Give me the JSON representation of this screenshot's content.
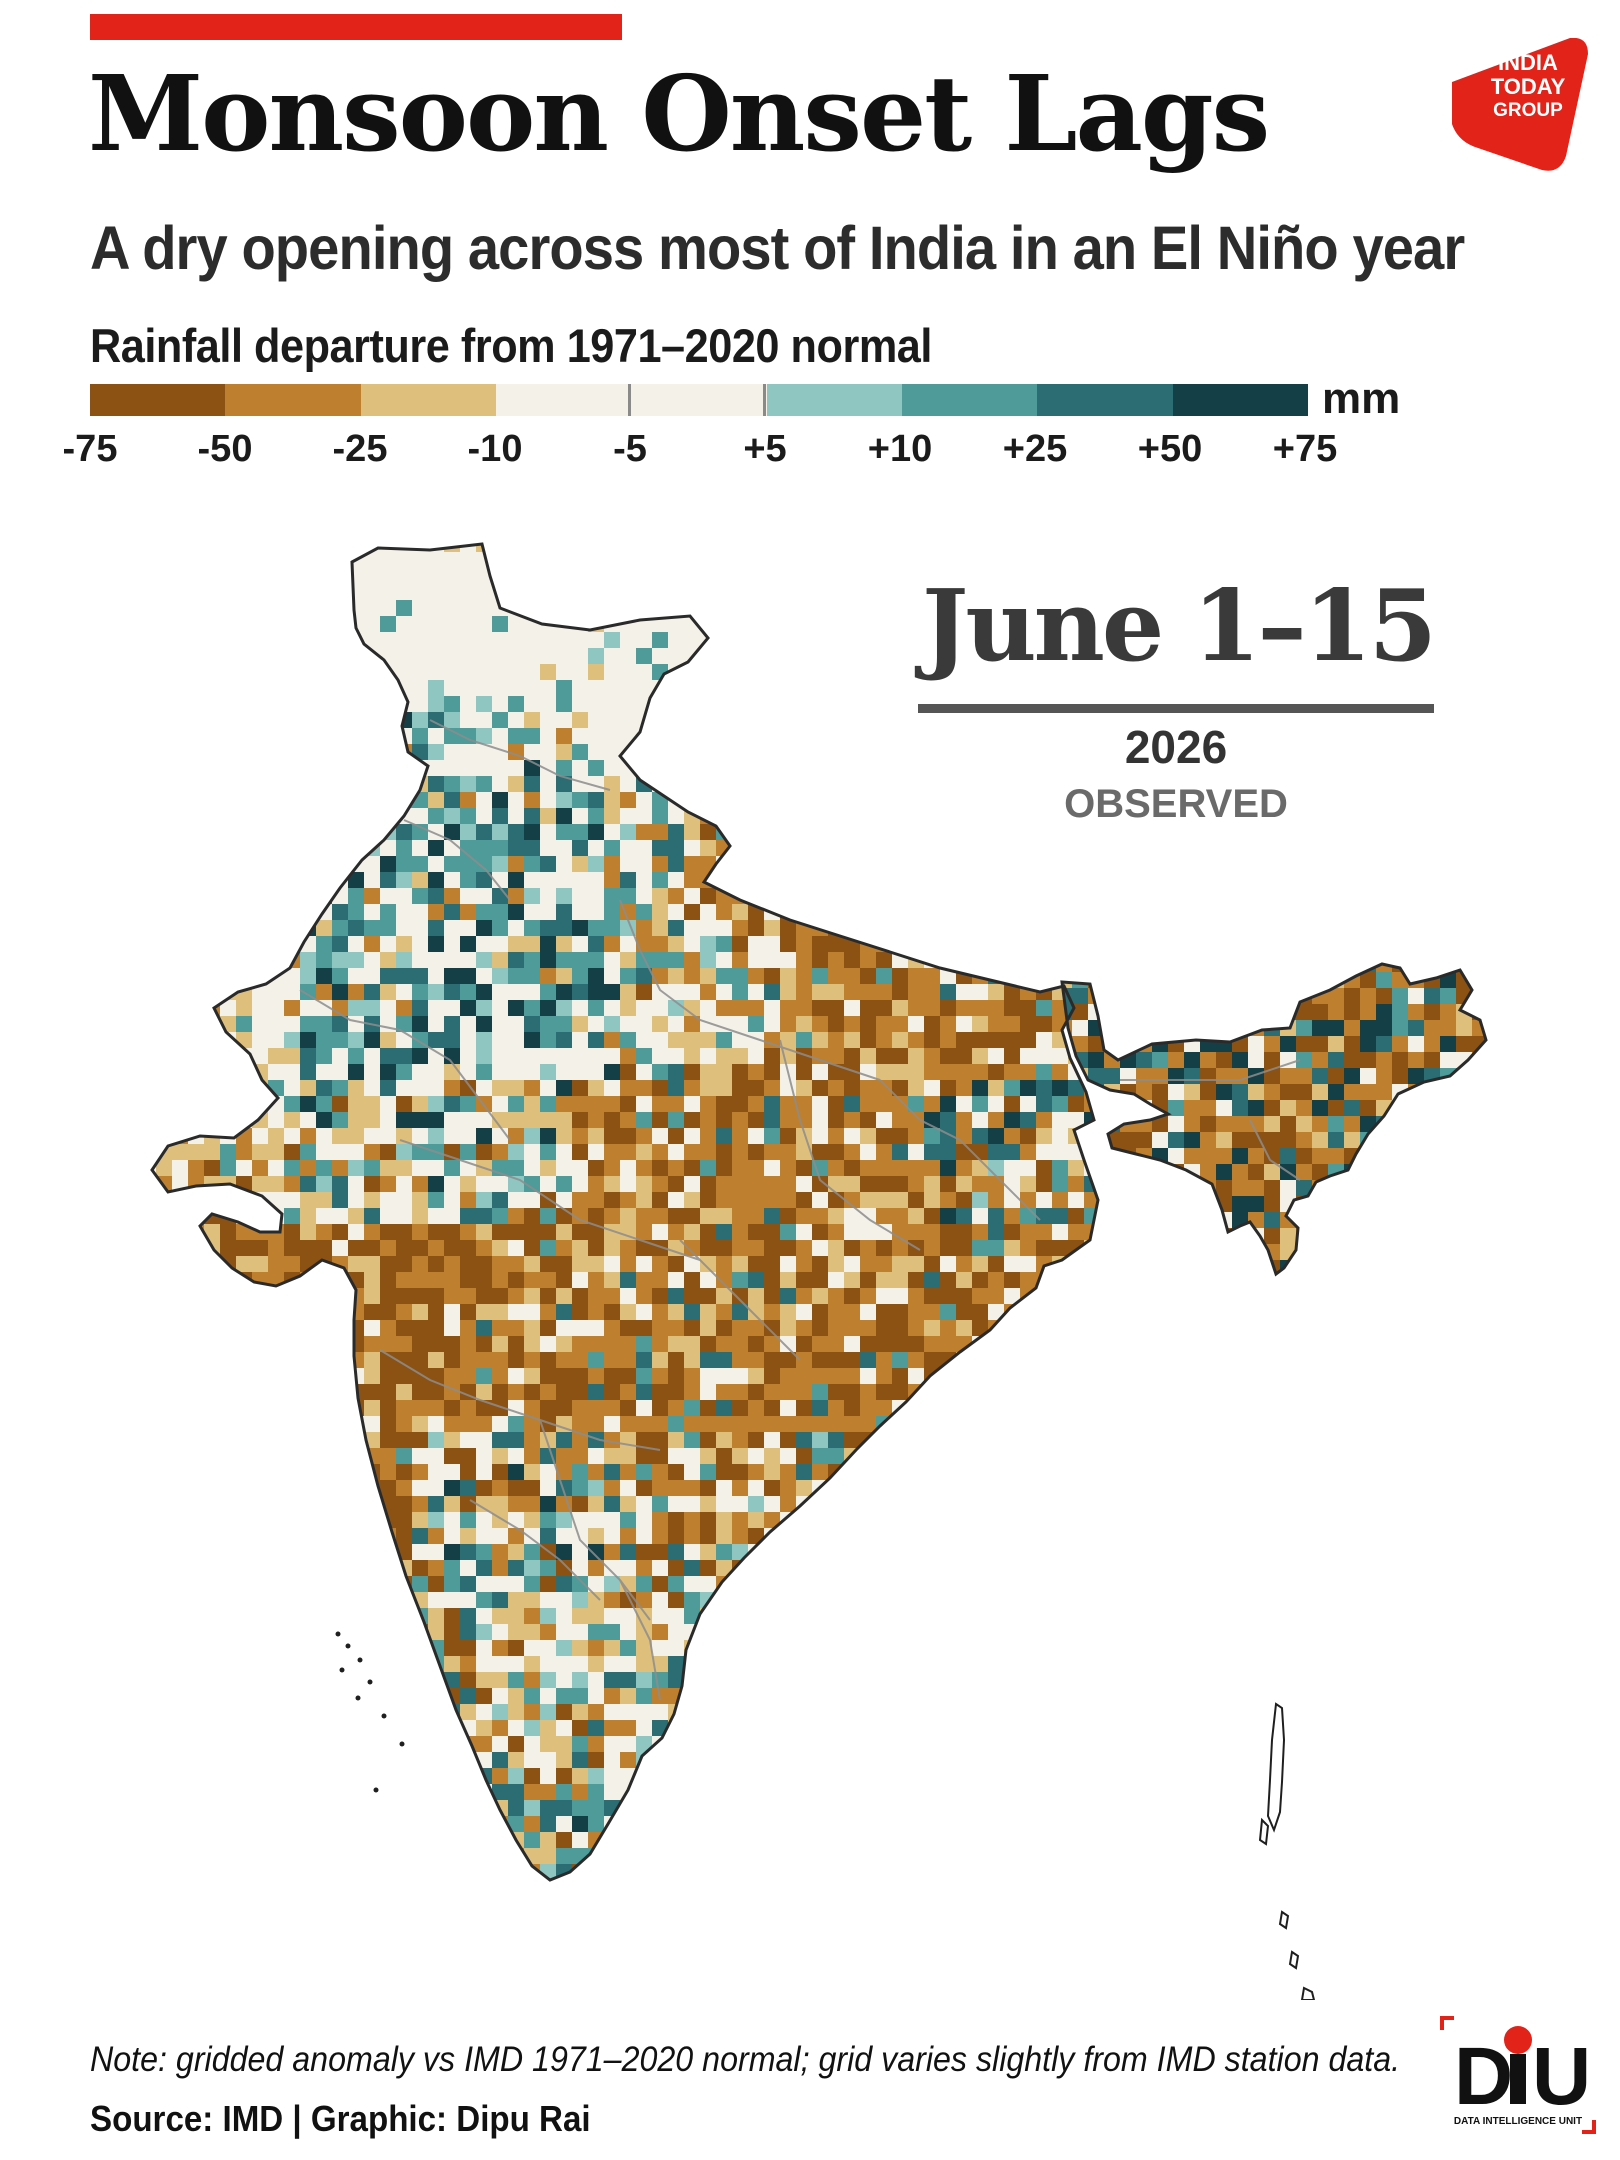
{
  "header": {
    "title": "Monsoon Onset Lags",
    "subtitle": "A dry opening across most of India in an El Niño year",
    "publisher_logo_text": "INDIA TODAY GROUP"
  },
  "legend": {
    "title": "Rainfall departure from 1971–2020 normal",
    "unit": "mm",
    "ticks": [
      "-75",
      "-50",
      "-25",
      "-10",
      "-5",
      "+5",
      "+10",
      "+25",
      "+50",
      "+75"
    ],
    "colors": [
      "#8b5214",
      "#be7f2e",
      "#dfbf7c",
      "#f4f1e9",
      "#f4f1e9",
      "#8fc6c1",
      "#4e9b99",
      "#2b6d72",
      "#153f47"
    ],
    "neutral_marks": [
      "-5",
      "+5"
    ]
  },
  "panel": {
    "period": "June 1–15",
    "year": "2026",
    "status": "OBSERVED"
  },
  "map_data": {
    "region": "India",
    "variable": "Rainfall departure (mm)",
    "color_scale": "diverging brown-white-teal",
    "regions": [
      {
        "name": "Jammu & Kashmir / Ladakh",
        "departure_class": "-10 to +5",
        "detail": "mostly neutral with scattered teal in south"
      },
      {
        "name": "Himachal Pradesh / Uttarakhand",
        "departure_class": "+10 to +50",
        "detail": "mixed teal and white"
      },
      {
        "name": "Punjab / Haryana / Delhi",
        "departure_class": "+10 to +75",
        "detail": "teal clusters with neutral patches"
      },
      {
        "name": "Rajasthan",
        "departure_class": "-25 to +75",
        "detail": "dark teal in north-central, tan in west and south"
      },
      {
        "name": "Gujarat",
        "departure_class": "-75 to -10",
        "detail": "tan in north, brown in Saurashtra"
      },
      {
        "name": "Uttar Pradesh (west)",
        "departure_class": "+10 to +75",
        "detail": "teal"
      },
      {
        "name": "Uttar Pradesh (east) / Bihar",
        "departure_class": "-75 to -10",
        "detail": "brown and white mix"
      },
      {
        "name": "Madhya Pradesh",
        "departure_class": "-50 to +25",
        "detail": "mixed tan, white and teal in north; brown in south"
      },
      {
        "name": "Maharashtra",
        "departure_class": "-75 to -25",
        "detail": "mostly brown"
      },
      {
        "name": "Chhattisgarh / Odisha",
        "departure_class": "-75 to -25",
        "detail": "brown"
      },
      {
        "name": "Jharkhand / West Bengal",
        "departure_class": "-50 to +25",
        "detail": "brown with teal pockets"
      },
      {
        "name": "Telangana / Andhra Pradesh",
        "departure_class": "-75 to +50",
        "detail": "brown with teal patches"
      },
      {
        "name": "Karnataka (interior)",
        "departure_class": "-25 to +50",
        "detail": "teal and white mix"
      },
      {
        "name": "Karnataka coast / Konkan",
        "departure_class": "-75 to -50",
        "detail": "dark brown"
      },
      {
        "name": "Tamil Nadu",
        "departure_class": "-25 to +10",
        "detail": "tan and white mix"
      },
      {
        "name": "Kerala",
        "departure_class": "-50 to +50",
        "detail": "brown with teal at southern tip"
      },
      {
        "name": "Northeast India",
        "departure_class": "-75 to +75",
        "detail": "brown with dark teal clusters"
      }
    ]
  },
  "footer": {
    "note": "Note: gridded anomaly vs IMD 1971–2020 normal; grid varies slightly from IMD station data.",
    "source": "Source: IMD  |  Graphic: Dipu Rai",
    "brand_logo_text": "DIU",
    "brand_logo_caption": "DATA INTELLIGENCE UNIT"
  }
}
